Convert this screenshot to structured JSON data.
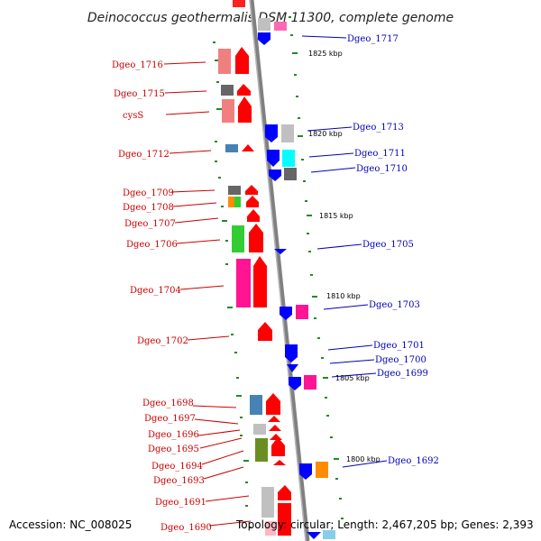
{
  "title": "Deinococcus geothermalis DSM 11300, complete genome",
  "accession": "Accession: NC_008025",
  "topology": "Topology: circular; Length: 2,467,205 bp; Genes: 2,393",
  "colors": {
    "forward": "#ff0000",
    "reverse": "#0000ff",
    "backbone": "#888888",
    "tick": "#228b22"
  },
  "kbp_marks": [
    "1825 kbp",
    "1820 kbp",
    "1815 kbp",
    "1810 kbp",
    "1805 kbp",
    "1800 kbp"
  ],
  "labels_left": [
    "Dgeo_1716",
    "Dgeo_1715",
    "cysS",
    "Dgeo_1712",
    "Dgeo_1709",
    "Dgeo_1708",
    "Dgeo_1707",
    "Dgeo_1706",
    "Dgeo_1704",
    "Dgeo_1702",
    "Dgeo_1698",
    "Dgeo_1697",
    "Dgeo_1696",
    "Dgeo_1695",
    "Dgeo_1694",
    "Dgeo_1693",
    "Dgeo_1691",
    "Dgeo_1690"
  ],
  "labels_right": [
    "Dgeo_1717",
    "Dgeo_1713",
    "Dgeo_1711",
    "Dgeo_1710",
    "Dgeo_1705",
    "Dgeo_1703",
    "Dgeo_1701",
    "Dgeo_1700",
    "Dgeo_1699",
    "Dgeo_1692"
  ]
}
